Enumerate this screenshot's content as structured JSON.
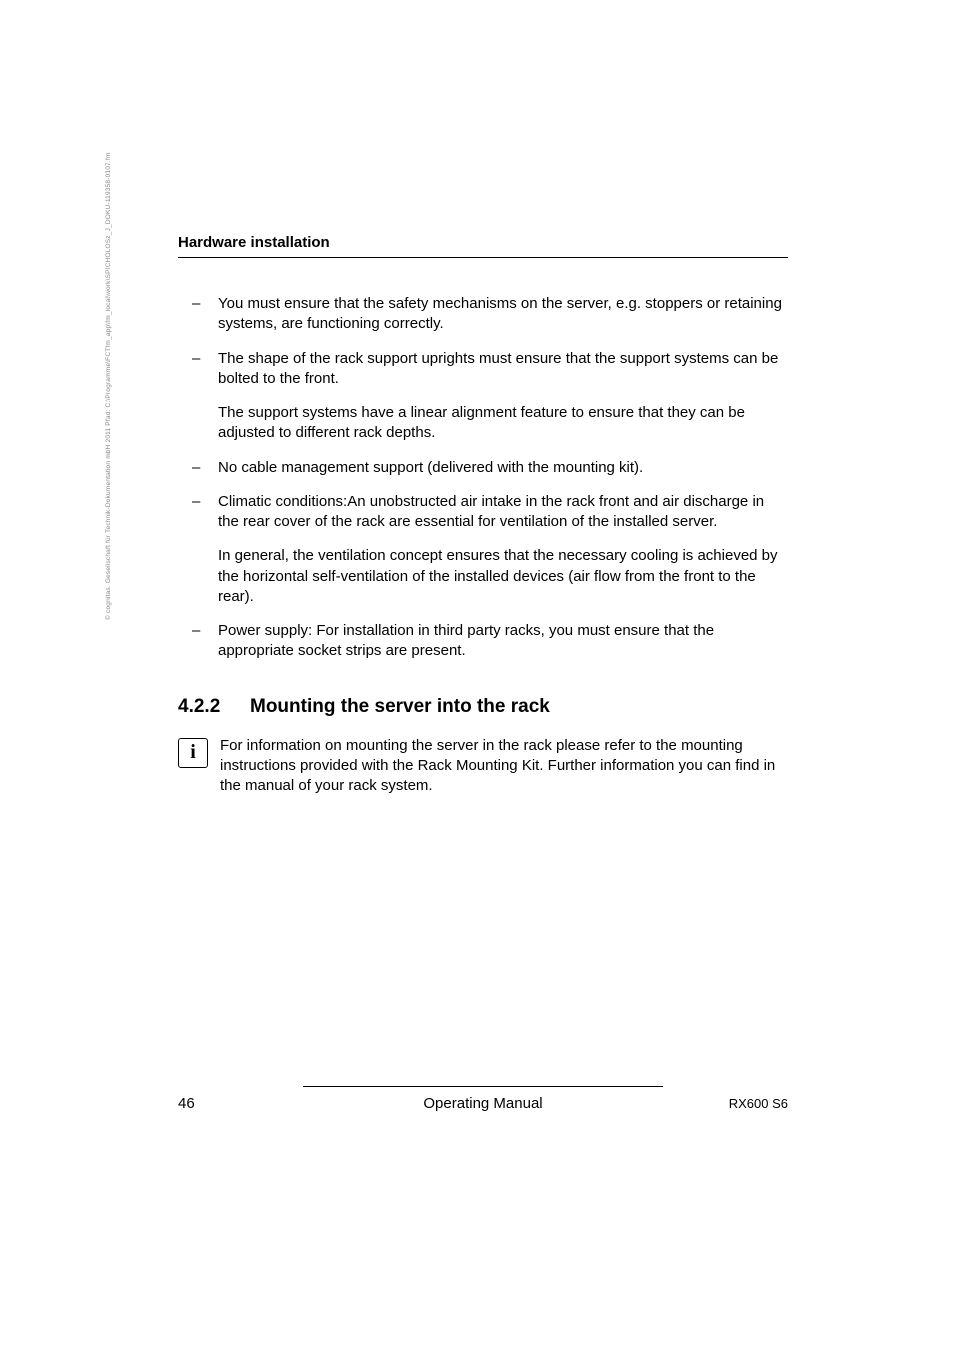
{
  "side_text": "© cognitas. Gesellschaft für Technik-Dokumentation mbH 2011     Pfad: C:\\Programme\\FCTfm_app\\fm_local\\work\\SPICHOLOSz_J_DOKU-119358-0107.fm",
  "header": {
    "title": "Hardware installation"
  },
  "bullets": {
    "b1": "You must ensure that the safety mechanisms on the server, e.g. stoppers or retaining systems, are functioning correctly.",
    "b2": "The shape of the rack support uprights must ensure that the support systems can be bolted to the front.",
    "b2p": "The support systems have a linear alignment feature to ensure that they can be adjusted to different rack depths.",
    "b3": "No cable management support (delivered with the mounting kit).",
    "b4": "Climatic conditions:An unobstructed air intake in the rack front and air discharge in the rear cover of the rack are essential for ventilation of the installed server.",
    "b4p": "In general, the ventilation concept ensures that the necessary cooling is achieved by the horizontal self-ventilation of the installed devices (air flow from the front to the rear).",
    "b5": "Power supply: For installation in third party racks, you must ensure that the appropriate socket strips are present."
  },
  "section": {
    "number": "4.2.2",
    "title": "Mounting the server into the rack",
    "info": "For information on mounting the server in the rack please refer to the mounting instructions provided with the Rack Mounting Kit. Further information you can find in the manual of your rack system."
  },
  "footer": {
    "page": "46",
    "center": "Operating Manual",
    "right": "RX600 S6"
  },
  "icon_glyph": "i"
}
